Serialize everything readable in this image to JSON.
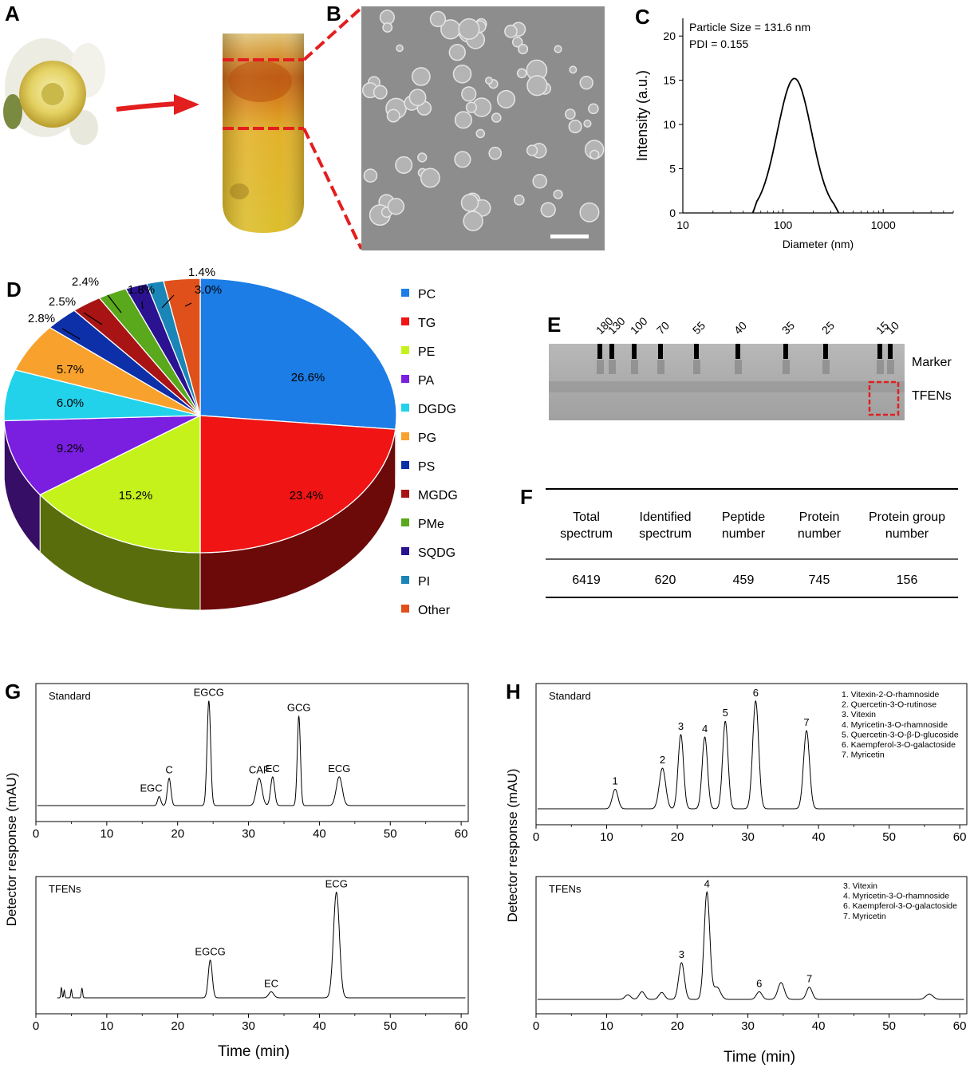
{
  "panels": {
    "A": {
      "letter": "A",
      "flower": "tea flower",
      "tube": "centrifuge tube"
    },
    "B": {
      "letter": "B",
      "micrograph": "TEM image"
    },
    "C": {
      "letter": "C",
      "chart_title_line1": "Particle  Size = 131.6 nm",
      "chart_title_line2": "PDI = 0.155"
    },
    "D": {
      "letter": "D"
    },
    "E": {
      "letter": "E",
      "row_labels": [
        "Marker",
        "TFENs"
      ],
      "marker_kda": [
        "180",
        "130",
        "100",
        "70",
        "55",
        "40",
        "35",
        "25",
        "15",
        "10"
      ]
    },
    "F": {
      "letter": "F",
      "headers": [
        [
          "Total",
          "spectrum"
        ],
        [
          "Identified",
          "spectrum"
        ],
        [
          "Peptide",
          "number"
        ],
        [
          "Protein",
          "number"
        ],
        [
          "Protein group",
          "number"
        ]
      ],
      "values": [
        "6419",
        "620",
        "459",
        "745",
        "156"
      ]
    },
    "G": {
      "letter": "G",
      "ylabel": "Detector response (mAU)"
    },
    "H": {
      "letter": "H",
      "ylabel": "Detector response (mAU)"
    }
  },
  "chart_data": [
    {
      "id": "C",
      "type": "line",
      "title": "Particle  Size = 131.6 nm",
      "subtitle": "PDI = 0.155",
      "xlabel": "Diameter (nm)",
      "ylabel": "Intensity (a.u.)",
      "xscale": "log",
      "xlim": [
        10,
        5000
      ],
      "ylim": [
        0,
        22
      ],
      "xticks": [
        10,
        100,
        1000
      ],
      "xtick_labels": [
        "10",
        "100",
        "1000"
      ],
      "yticks": [
        0,
        5,
        10,
        15,
        20
      ],
      "ytick_labels": [
        "0",
        "5",
        "10",
        "15",
        "20"
      ],
      "peak_x": 130,
      "peak_y": 15.2,
      "log_sigma": 0.17,
      "x_start": 55,
      "x_end": 320
    },
    {
      "id": "D",
      "type": "pie",
      "labels": [
        "PC",
        "TG",
        "PE",
        "PA",
        "DGDG",
        "PG",
        "PS",
        "MGDG",
        "PMe",
        "SQDG",
        "PI",
        "Other"
      ],
      "values": [
        26.6,
        23.4,
        15.2,
        9.2,
        6.0,
        5.7,
        2.8,
        2.5,
        2.4,
        1.8,
        1.4,
        3.0
      ],
      "value_labels": [
        "26.6%",
        "23.4%",
        "15.2%",
        "9.2%",
        "6.0%",
        "5.7%",
        "2.8%",
        "2.5%",
        "2.4%",
        "1.8%",
        "1.4%",
        "3.0%"
      ],
      "colors": [
        "#1b7de5",
        "#f01414",
        "#c6f21c",
        "#7a1ee0",
        "#22d2ea",
        "#f8a12c",
        "#0d2fa8",
        "#a81414",
        "#5aa81c",
        "#2a1290",
        "#1a86b8",
        "#e0501a"
      ],
      "legend_position": "right"
    },
    {
      "id": "G-standard",
      "type": "line",
      "title": "Standard",
      "xlabel": "Time (min)",
      "ylabel": "Detector response (mAU)",
      "xlim": [
        0,
        61
      ],
      "xticks": [
        0,
        10,
        20,
        30,
        40,
        50,
        60
      ],
      "xtick_labels": [
        "0",
        "10",
        "20",
        "30",
        "40",
        "50",
        "60"
      ],
      "ymax": 150,
      "peaks": [
        {
          "label": "EGC",
          "t": 17.4,
          "h": 12,
          "w": 0.22
        },
        {
          "label": "C",
          "t": 18.8,
          "h": 36,
          "w": 0.25
        },
        {
          "label": "EGCG",
          "t": 24.4,
          "h": 138,
          "w": 0.25
        },
        {
          "label": "CAF",
          "t": 31.5,
          "h": 36,
          "w": 0.4
        },
        {
          "label": "EC",
          "t": 33.4,
          "h": 38,
          "w": 0.28
        },
        {
          "label": "GCG",
          "t": 37.1,
          "h": 118,
          "w": 0.22
        },
        {
          "label": "ECG",
          "t": 42.8,
          "h": 38,
          "w": 0.42
        }
      ]
    },
    {
      "id": "G-tfens",
      "type": "line",
      "title": "TFENs",
      "xlabel": "Time (min)",
      "ylabel": "Detector response (mAU)",
      "xlim": [
        0,
        61
      ],
      "xticks": [
        0,
        10,
        20,
        30,
        40,
        50,
        60
      ],
      "xtick_labels": [
        "0",
        "10",
        "20",
        "30",
        "40",
        "50",
        "60"
      ],
      "ymax": 150,
      "peaks": [
        {
          "label": "",
          "t": 3.6,
          "h": 14,
          "w": 0.08
        },
        {
          "label": "",
          "t": 4.0,
          "h": 10,
          "w": 0.08
        },
        {
          "label": "",
          "t": 5.0,
          "h": 11,
          "w": 0.08
        },
        {
          "label": "",
          "t": 6.5,
          "h": 13,
          "w": 0.09
        },
        {
          "label": "EGCG",
          "t": 24.6,
          "h": 50,
          "w": 0.28
        },
        {
          "label": "EC",
          "t": 33.2,
          "h": 8,
          "w": 0.35
        },
        {
          "label": "ECG",
          "t": 42.4,
          "h": 140,
          "w": 0.42
        }
      ]
    },
    {
      "id": "H-standard",
      "type": "line",
      "title": "Standard",
      "xlabel": "Time (min)",
      "ylabel": "Detector response (mAU)",
      "xlim": [
        0,
        61
      ],
      "xticks": [
        0,
        10,
        20,
        30,
        40,
        50,
        60
      ],
      "xtick_labels": [
        "0",
        "10",
        "20",
        "30",
        "40",
        "50",
        "60"
      ],
      "ymax": 150,
      "peaks": [
        {
          "label": "1",
          "t": 11.2,
          "h": 25,
          "w": 0.4
        },
        {
          "label": "2",
          "t": 17.9,
          "h": 52,
          "w": 0.45
        },
        {
          "label": "3",
          "t": 20.5,
          "h": 95,
          "w": 0.38
        },
        {
          "label": "4",
          "t": 23.9,
          "h": 92,
          "w": 0.38
        },
        {
          "label": "5",
          "t": 26.8,
          "h": 112,
          "w": 0.38
        },
        {
          "label": "6",
          "t": 31.1,
          "h": 138,
          "w": 0.42
        },
        {
          "label": "7",
          "t": 38.3,
          "h": 100,
          "w": 0.42
        }
      ],
      "legend": [
        "1. Vitexin-2-O-rhamnoside",
        "2. Quercetin-3-O-rutinose",
        "3. Vitexin",
        "4. Myricetin-3-O-rhamnoside",
        "5. Quercetin-3-O-β-D-glucoside",
        "6.  Kaempferol-3-O-galactoside",
        "7. Myricetin"
      ]
    },
    {
      "id": "H-tfens",
      "type": "line",
      "title": "TFENs",
      "xlabel": "Time (min)",
      "ylabel": "Detector response (mAU)",
      "xlim": [
        0,
        61
      ],
      "xticks": [
        0,
        10,
        20,
        30,
        40,
        50,
        60
      ],
      "xtick_labels": [
        "0",
        "10",
        "20",
        "30",
        "40",
        "50",
        "60"
      ],
      "ymax": 150,
      "peaks": [
        {
          "label": "",
          "t": 13.0,
          "h": 6,
          "w": 0.4
        },
        {
          "label": "",
          "t": 15.0,
          "h": 10,
          "w": 0.4
        },
        {
          "label": "",
          "t": 17.8,
          "h": 9,
          "w": 0.4
        },
        {
          "label": "3",
          "t": 20.6,
          "h": 48,
          "w": 0.4
        },
        {
          "label": "4",
          "t": 24.2,
          "h": 140,
          "w": 0.4
        },
        {
          "label": "",
          "t": 25.6,
          "h": 16,
          "w": 0.5
        },
        {
          "label": "6",
          "t": 31.6,
          "h": 10,
          "w": 0.4
        },
        {
          "label": "",
          "t": 34.7,
          "h": 22,
          "w": 0.45
        },
        {
          "label": "7",
          "t": 38.7,
          "h": 16,
          "w": 0.4
        },
        {
          "label": "",
          "t": 55.7,
          "h": 7,
          "w": 0.5
        }
      ],
      "legend": [
        "3. Vitexin",
        "4. Myricetin-3-O-rhamnoside",
        "6.  Kaempferol-3-O-galactoside",
        "7. Myricetin"
      ]
    }
  ]
}
